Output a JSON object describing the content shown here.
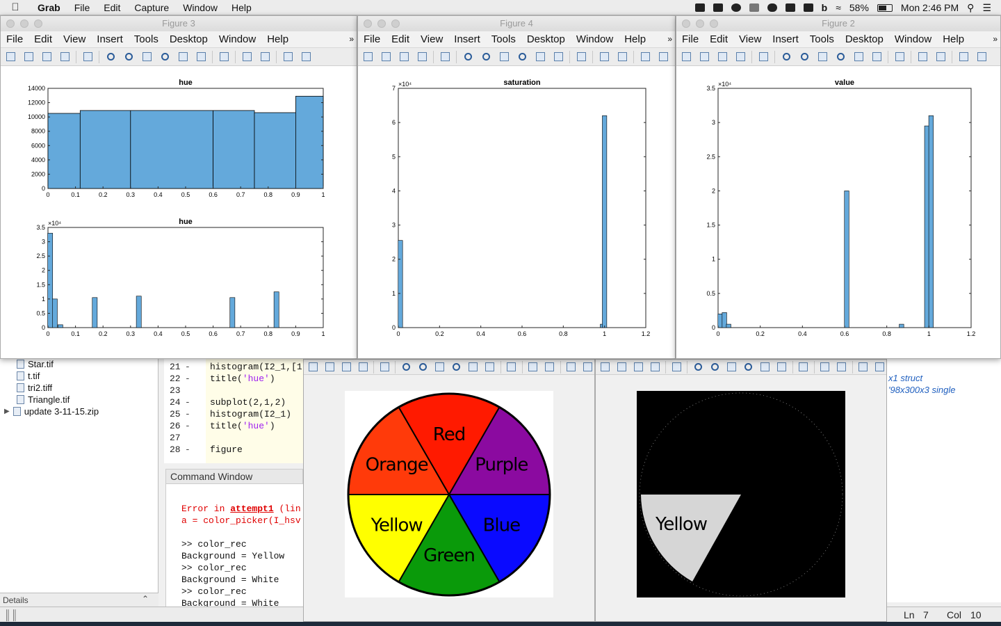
{
  "menubar": {
    "apple": "",
    "app": "Grab",
    "items": [
      "File",
      "Edit",
      "Capture",
      "Window",
      "Help"
    ],
    "battery": "58%",
    "clock": "Mon 2:46 PM"
  },
  "figure_menu": [
    "File",
    "Edit",
    "View",
    "Insert",
    "Tools",
    "Desktop",
    "Window",
    "Help"
  ],
  "figures": {
    "fig3": {
      "title": "Figure 3"
    },
    "fig4": {
      "title": "Figure 4"
    },
    "fig2": {
      "title": "Figure 2"
    }
  },
  "files": [
    "Star.tif",
    "t.tif",
    "tri2.tiff",
    "Triangle.tif",
    "update 3-11-15.zip"
  ],
  "details_label": "Details",
  "editor": {
    "lines": [
      {
        "n": "21",
        "code": "histogram(I2_1,[1"
      },
      {
        "n": "22",
        "code": "title('hue')"
      },
      {
        "n": "23",
        "code": ""
      },
      {
        "n": "24",
        "code": "subplot(2,1,2)"
      },
      {
        "n": "25",
        "code": "histogram(I2_1)"
      },
      {
        "n": "26",
        "code": "title('hue')"
      },
      {
        "n": "27",
        "code": ""
      },
      {
        "n": "28",
        "code": "figure"
      }
    ]
  },
  "command_window": {
    "title": "Command Window",
    "err1a": "Error in ",
    "err1b": "attempt1",
    "err1c": " (lin",
    "err2": "a = color_picker(I_hsv",
    "l1": ">> color_rec",
    "l2": "Background = Yellow",
    "l3": ">> color_rec",
    "l4": "Background = White",
    "l5": ">> color_rec",
    "l6": "Background = White",
    "prompt": ">>"
  },
  "workspace": {
    "w1": "x1 struct",
    "w2": "'98x300x3 single"
  },
  "statusbar": {
    "ln_label": "Ln",
    "ln": "7",
    "col_label": "Col",
    "col": "10"
  },
  "wheel": {
    "labels": [
      "Red",
      "Purple",
      "Blue",
      "Green",
      "Yellow",
      "Orange"
    ],
    "colors": [
      "#ff1a00",
      "#8b0aa0",
      "#0a0aff",
      "#0a9a0a",
      "#ffff00",
      "#ff3a0a"
    ]
  },
  "mask_label": "Yellow",
  "chart_data": [
    {
      "type": "bar",
      "title": "hue",
      "x_edges": [
        0,
        0.117,
        0.3,
        0.6,
        0.75,
        0.9,
        1.0
      ],
      "values": [
        10500,
        10900,
        10900,
        10900,
        10600,
        12900,
        300
      ],
      "xlim": [
        0,
        1
      ],
      "ylim": [
        0,
        14000
      ],
      "xticks": [
        "0",
        "0.1",
        "0.2",
        "0.3",
        "0.4",
        "0.5",
        "0.6",
        "0.7",
        "0.8",
        "0.9",
        "1"
      ],
      "yticks": [
        "0",
        "2000",
        "4000",
        "6000",
        "8000",
        "10000",
        "12000",
        "14000"
      ],
      "color": "#64a9db"
    },
    {
      "type": "bar",
      "title": "hue",
      "exponent": "×10⁴",
      "x": [
        0.008,
        0.025,
        0.045,
        0.17,
        0.33,
        0.67,
        0.83
      ],
      "values": [
        3.3,
        1.0,
        0.1,
        1.05,
        1.1,
        1.05,
        1.25
      ],
      "xlim": [
        0,
        1
      ],
      "ylim": [
        0,
        3.5
      ],
      "xticks": [
        "0",
        "0.1",
        "0.2",
        "0.3",
        "0.4",
        "0.5",
        "0.6",
        "0.7",
        "0.8",
        "0.9",
        "1"
      ],
      "yticks": [
        "0",
        "0.5",
        "1",
        "1.5",
        "2",
        "2.5",
        "3",
        "3.5"
      ],
      "color": "#64a9db"
    },
    {
      "type": "bar",
      "title": "saturation",
      "exponent": "×10⁴",
      "x": [
        0.01,
        0.99,
        1.0
      ],
      "values": [
        2.55,
        0.1,
        6.2
      ],
      "xlim": [
        0,
        1.2
      ],
      "ylim": [
        0,
        7
      ],
      "xticks": [
        "0",
        "0.2",
        "0.4",
        "0.6",
        "0.8",
        "1",
        "1.2"
      ],
      "yticks": [
        "0",
        "1",
        "2",
        "3",
        "4",
        "5",
        "6",
        "7"
      ],
      "color": "#64a9db"
    },
    {
      "type": "bar",
      "title": "value",
      "exponent": "×10⁴",
      "x": [
        0.01,
        0.03,
        0.05,
        0.61,
        0.87,
        0.99,
        1.01
      ],
      "values": [
        0.2,
        0.22,
        0.05,
        2.0,
        0.05,
        2.95,
        3.1
      ],
      "xlim": [
        0,
        1.2
      ],
      "ylim": [
        0,
        3.5
      ],
      "xticks": [
        "0",
        "0.2",
        "0.4",
        "0.6",
        "0.8",
        "1",
        "1.2"
      ],
      "yticks": [
        "0",
        "0.5",
        "1",
        "1.5",
        "2",
        "2.5",
        "3",
        "3.5"
      ],
      "color": "#64a9db"
    }
  ]
}
